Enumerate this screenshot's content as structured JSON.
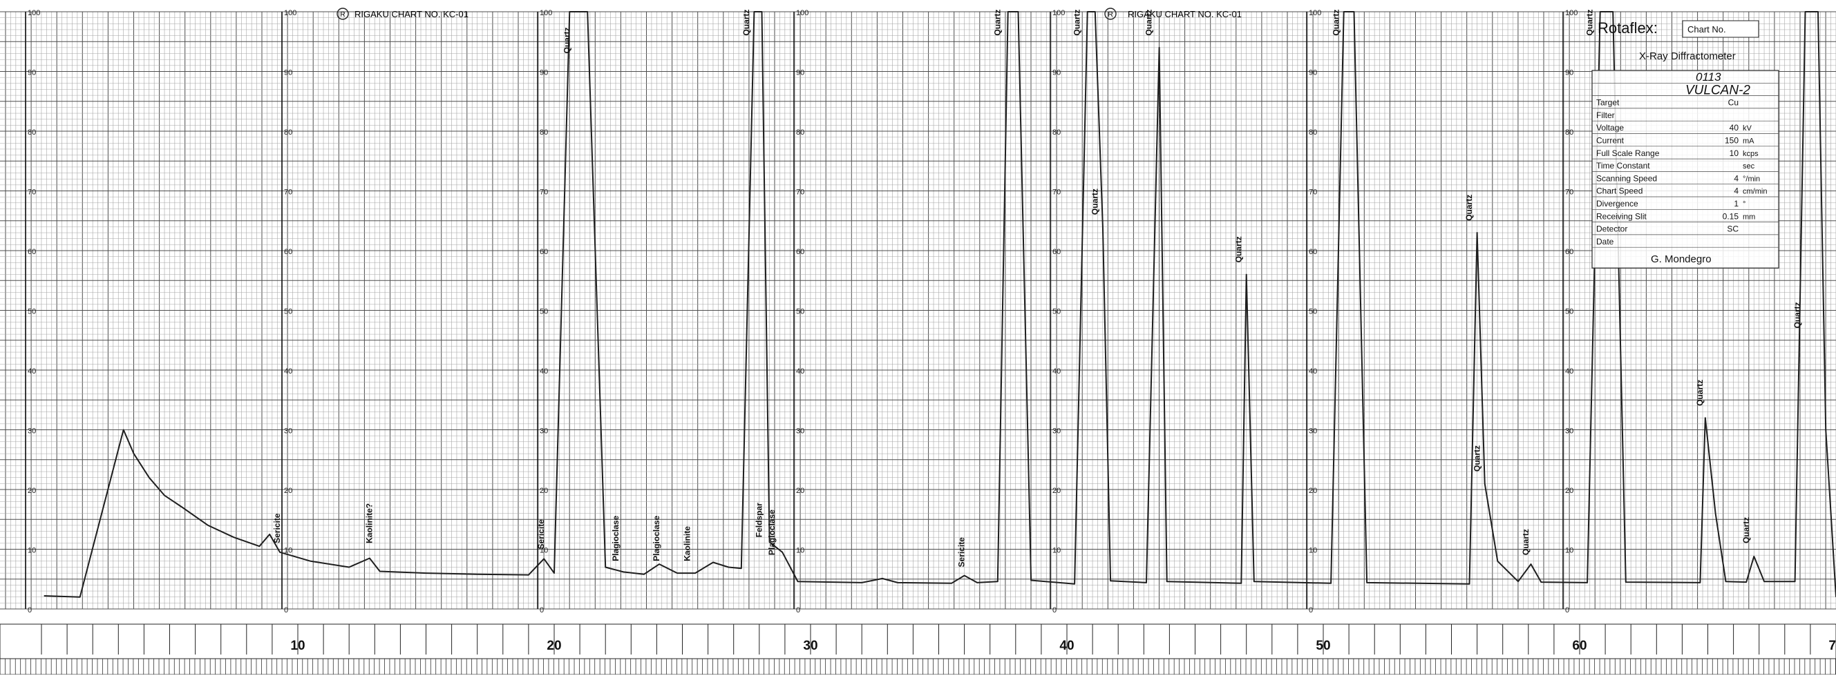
{
  "header": {
    "left_caption": "RIGAKU CHART NO. KC-01",
    "right_caption": "RIGAKU CHART NO. KC-01",
    "brand_mark": "R"
  },
  "chart_data": {
    "type": "line",
    "title": "",
    "xlabel": "",
    "ylabel": "",
    "xlim": [
      0,
      70
    ],
    "ylim": [
      0,
      100
    ],
    "grid": true,
    "x_tick_labels": [
      "10",
      "20",
      "30",
      "40",
      "50",
      "60",
      "70"
    ],
    "y_scale_labels": [
      "100",
      "90",
      "80",
      "70",
      "60",
      "50",
      "40",
      "30",
      "20",
      "10",
      "0"
    ],
    "series": [
      {
        "points": [
          [
            0.1,
            2.2
          ],
          [
            1.5,
            2.0
          ],
          [
            3.2,
            30
          ],
          [
            3.6,
            26
          ],
          [
            4.2,
            22
          ],
          [
            4.8,
            19
          ],
          [
            5.5,
            17
          ],
          [
            6.5,
            14
          ],
          [
            7.5,
            12
          ],
          [
            8.5,
            10.5
          ],
          [
            8.9,
            12.5
          ],
          [
            9.3,
            9.5
          ],
          [
            10.5,
            8
          ],
          [
            12,
            7
          ],
          [
            12.8,
            8.5
          ],
          [
            13.2,
            6.3
          ],
          [
            15,
            6
          ],
          [
            17,
            5.8
          ],
          [
            19,
            5.7
          ],
          [
            19.6,
            8.4
          ],
          [
            20.0,
            6
          ],
          [
            20.6,
            100
          ],
          [
            21.3,
            100
          ],
          [
            22.0,
            7
          ],
          [
            22.7,
            6.2
          ],
          [
            23.5,
            5.8
          ],
          [
            24.1,
            7.5
          ],
          [
            24.8,
            6
          ],
          [
            25.5,
            6
          ],
          [
            26.2,
            7.8
          ],
          [
            26.8,
            7
          ],
          [
            27.3,
            6.8
          ],
          [
            27.8,
            100
          ],
          [
            28.1,
            100
          ],
          [
            28.4,
            11.2
          ],
          [
            28.9,
            9.5
          ],
          [
            29.5,
            4.6
          ],
          [
            32,
            4.4
          ],
          [
            32.8,
            5.1
          ],
          [
            33.4,
            4.4
          ],
          [
            35.5,
            4.3
          ],
          [
            36.0,
            5.6
          ],
          [
            36.5,
            4.4
          ],
          [
            37.3,
            4.6
          ],
          [
            37.7,
            100
          ],
          [
            38.1,
            100
          ],
          [
            38.6,
            4.8
          ],
          [
            40.3,
            4.2
          ],
          [
            40.8,
            100
          ],
          [
            41.1,
            100
          ],
          [
            41.4,
            64
          ],
          [
            41.7,
            4.7
          ],
          [
            43.1,
            4.4
          ],
          [
            43.6,
            94
          ],
          [
            43.9,
            4.6
          ],
          [
            46.8,
            4.3
          ],
          [
            47.0,
            56
          ],
          [
            47.3,
            4.6
          ],
          [
            50.3,
            4.3
          ],
          [
            50.8,
            100
          ],
          [
            51.2,
            100
          ],
          [
            51.7,
            4.4
          ],
          [
            55.7,
            4.2
          ],
          [
            56.0,
            63
          ],
          [
            56.3,
            21
          ],
          [
            56.8,
            8
          ],
          [
            57.6,
            4.6
          ],
          [
            58.1,
            7.5
          ],
          [
            58.5,
            4.5
          ],
          [
            60.3,
            4.4
          ],
          [
            60.8,
            100
          ],
          [
            61.3,
            100
          ],
          [
            61.8,
            4.5
          ],
          [
            64.7,
            4.4
          ],
          [
            64.9,
            32
          ],
          [
            65.3,
            16
          ],
          [
            65.7,
            4.6
          ],
          [
            66.5,
            4.5
          ],
          [
            66.8,
            8.8
          ],
          [
            67.2,
            4.6
          ],
          [
            68.4,
            4.6
          ],
          [
            68.8,
            100
          ],
          [
            69.3,
            100
          ],
          [
            69.6,
            30
          ],
          [
            70.0,
            2
          ]
        ]
      }
    ],
    "annotations": [
      {
        "text": "Sericite",
        "x": 9.3,
        "y": 11
      },
      {
        "text": "Kaolinite?",
        "x": 12.9,
        "y": 11
      },
      {
        "text": "Sericite",
        "x": 19.6,
        "y": 10
      },
      {
        "text": "Quartz",
        "x": 20.6,
        "y": 93
      },
      {
        "text": "Plagioclase",
        "x": 22.5,
        "y": 8
      },
      {
        "text": "Plagioclase",
        "x": 24.1,
        "y": 8
      },
      {
        "text": "Kaolinite",
        "x": 25.3,
        "y": 8
      },
      {
        "text": "Quartz",
        "x": 27.6,
        "y": 96
      },
      {
        "text": "Feldspar",
        "x": 28.1,
        "y": 12
      },
      {
        "text": "Plagioclase",
        "x": 28.6,
        "y": 9
      },
      {
        "text": "Sericite",
        "x": 36.0,
        "y": 7
      },
      {
        "text": "Quartz",
        "x": 37.4,
        "y": 96
      },
      {
        "text": "Quartz",
        "x": 40.5,
        "y": 96
      },
      {
        "text": "Quartz",
        "x": 41.2,
        "y": 66
      },
      {
        "text": "Quartz",
        "x": 43.3,
        "y": 96
      },
      {
        "text": "Quartz",
        "x": 46.8,
        "y": 58
      },
      {
        "text": "Quartz",
        "x": 50.6,
        "y": 96
      },
      {
        "text": "Quartz",
        "x": 55.8,
        "y": 65
      },
      {
        "text": "Quartz",
        "x": 56.1,
        "y": 23
      },
      {
        "text": "Quartz",
        "x": 58.0,
        "y": 9
      },
      {
        "text": "Quartz",
        "x": 60.5,
        "y": 96
      },
      {
        "text": "Quartz",
        "x": 64.8,
        "y": 34
      },
      {
        "text": "Quartz",
        "x": 66.6,
        "y": 11
      },
      {
        "text": "Quartz",
        "x": 68.6,
        "y": 47
      }
    ]
  },
  "info_block": {
    "brand": "Rotaflex",
    "chart_no_label": "Chart No.",
    "subtitle": "X-Ray Diffractometer",
    "sample_no": "0113",
    "sample_name": "VULCAN-2",
    "fields": [
      {
        "label": "Target",
        "value": "Cu"
      },
      {
        "label": "Filter",
        "value": ""
      },
      {
        "label": "Voltage",
        "value": "40",
        "unit": "kV"
      },
      {
        "label": "Current",
        "value": "150",
        "unit": "mA"
      },
      {
        "label": "Full Scale Range",
        "value": "10",
        "unit": "kcps"
      },
      {
        "label": "Time Constant",
        "value": "",
        "unit": "sec"
      },
      {
        "label": "Scanning Speed",
        "value": "4",
        "unit": "°/min"
      },
      {
        "label": "Chart Speed",
        "value": "4",
        "unit": "cm/min"
      },
      {
        "label": "Divergence",
        "value": "1",
        "unit": "°"
      },
      {
        "label": "Receiving Slit",
        "value": "0.15",
        "unit": "mm"
      },
      {
        "label": "Detector",
        "value": "SC",
        "unit": ""
      },
      {
        "label": "Date",
        "value": "",
        "unit": ""
      }
    ],
    "operator": "G. Mondegro"
  },
  "colors": {
    "paper": "#ffffff",
    "grid_major": "#4d4d4d",
    "grid_minor": "#a6a6a6",
    "trace": "#1e1e1e"
  }
}
